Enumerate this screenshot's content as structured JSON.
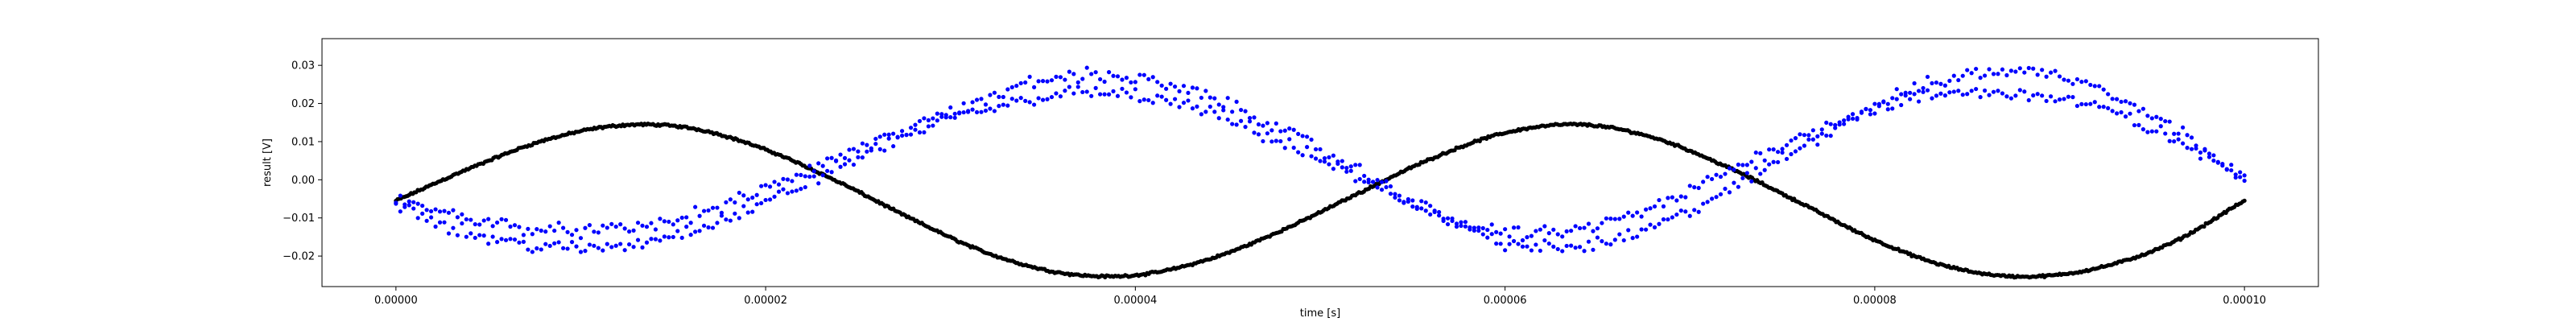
{
  "chart_data": {
    "type": "scatter",
    "title": "",
    "xlabel": "time [s]",
    "ylabel": "result [V]",
    "xlim": [
      -4e-06,
      0.000104
    ],
    "ylim": [
      -0.028,
      0.037
    ],
    "grid": false,
    "x_ticks": [
      {
        "value": 0.0,
        "label": "0.00000"
      },
      {
        "value": 2e-05,
        "label": "0.00002"
      },
      {
        "value": 4e-05,
        "label": "0.00004"
      },
      {
        "value": 6e-05,
        "label": "0.00006"
      },
      {
        "value": 8e-05,
        "label": "0.00008"
      },
      {
        "value": 0.0001,
        "label": "0.00010"
      }
    ],
    "y_ticks": [
      {
        "value": -0.02,
        "label": "−0.02"
      },
      {
        "value": -0.01,
        "label": "−0.01"
      },
      {
        "value": 0.0,
        "label": "0.00"
      },
      {
        "value": 0.01,
        "label": "0.01"
      },
      {
        "value": 0.02,
        "label": "0.02"
      },
      {
        "value": 0.03,
        "label": "0.03"
      }
    ],
    "series": [
      {
        "color": "#000000",
        "marker": "dot",
        "x": [
          0.0,
          4e-06,
          8e-06,
          1.2e-05,
          1.6e-05,
          2e-05,
          2.4e-05,
          2.8e-05,
          3.2e-05,
          3.6e-05,
          4e-05,
          4.4e-05,
          4.8e-05,
          5.2e-05,
          5.6e-05,
          6e-05,
          6.4e-05,
          6.8e-05,
          7.2e-05,
          7.6e-05,
          8e-05,
          8.4e-05,
          8.8e-05,
          9.2e-05,
          9.6e-05,
          0.0001
        ],
        "values": [
          -0.0055,
          0.003,
          0.0103,
          0.0142,
          0.0135,
          0.0079,
          -0.0007,
          -0.0105,
          -0.0192,
          -0.0244,
          -0.025,
          -0.0208,
          -0.0131,
          -0.0037,
          0.0055,
          0.0123,
          0.0145,
          0.0111,
          0.0034,
          -0.0061,
          -0.0158,
          -0.0228,
          -0.0254,
          -0.0232,
          -0.0167,
          -0.0055
        ]
      },
      {
        "color": "#0000ff",
        "marker": "dot",
        "x": [
          0.0,
          4e-06,
          8e-06,
          1.2e-05,
          1.6e-05,
          2e-05,
          2.4e-05,
          2.8e-05,
          3.2e-05,
          3.6e-05,
          4e-05,
          4.4e-05,
          4.8e-05,
          5.2e-05,
          5.6e-05,
          6e-05,
          6.4e-05,
          6.8e-05,
          7.2e-05,
          7.6e-05,
          8e-05,
          8.4e-05,
          8.8e-05,
          9.2e-05,
          9.6e-05,
          0.0001
        ],
        "values": [
          -0.0055,
          -0.01,
          -0.013,
          -0.013,
          -0.0095,
          -0.0025,
          0.006,
          0.0135,
          0.0185,
          0.0225,
          0.022,
          0.0175,
          0.0095,
          0.0005,
          -0.0085,
          -0.014,
          -0.013,
          -0.0075,
          0.002,
          0.0115,
          0.0185,
          0.0225,
          0.0225,
          0.019,
          0.011,
          0.0005
        ]
      },
      {
        "color": "#0000ff",
        "marker": "dot",
        "x": [
          0.0,
          4e-06,
          8e-06,
          1.2e-05,
          1.6e-05,
          2e-05,
          2.4e-05,
          2.8e-05,
          3.2e-05,
          3.6e-05,
          4e-05,
          4.4e-05,
          4.8e-05,
          5.2e-05,
          5.6e-05,
          6e-05,
          6.4e-05,
          6.8e-05,
          7.2e-05,
          7.6e-05,
          8e-05,
          8.4e-05,
          8.8e-05,
          9.2e-05,
          9.6e-05,
          0.0001
        ],
        "values": [
          -0.006,
          -0.014,
          -0.0175,
          -0.0175,
          -0.013,
          -0.006,
          0.0035,
          0.0125,
          0.0215,
          0.027,
          0.0265,
          0.0215,
          0.013,
          0.0025,
          -0.008,
          -0.0165,
          -0.0175,
          -0.0125,
          -0.003,
          0.0085,
          0.0195,
          0.0265,
          0.0285,
          0.0245,
          0.014,
          0.001
        ]
      }
    ]
  }
}
